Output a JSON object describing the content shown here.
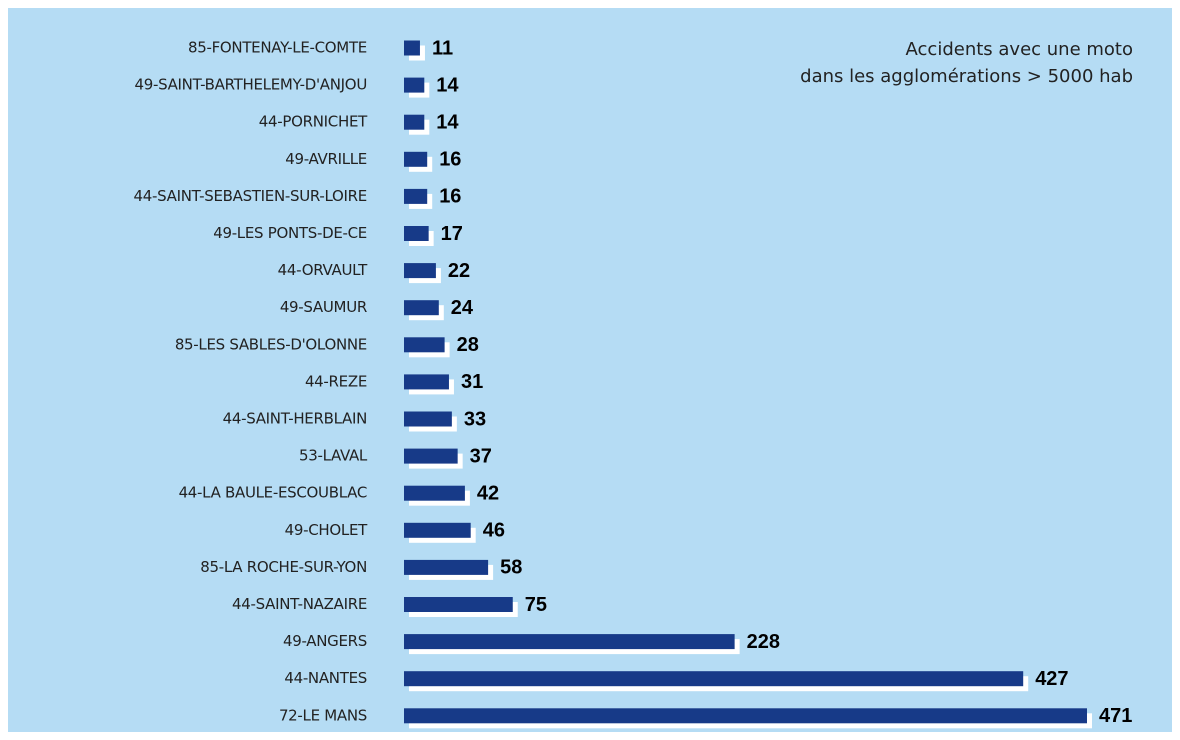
{
  "chart_data": {
    "type": "bar",
    "orientation": "horizontal",
    "title": [
      "Accidents avec une moto",
      "dans les agglomérations > 5000 hab"
    ],
    "categories": [
      "85-FONTENAY-LE-COMTE",
      "49-SAINT-BARTHELEMY-D'ANJOU",
      "44-PORNICHET",
      "49-AVRILLE",
      "44-SAINT-SEBASTIEN-SUR-LOIRE",
      "49-LES PONTS-DE-CE",
      "44-ORVAULT",
      "49-SAUMUR",
      "85-LES SABLES-D'OLONNE",
      "44-REZE",
      "44-SAINT-HERBLAIN",
      "53-LAVAL",
      "44-LA BAULE-ESCOUBLAC",
      "49-CHOLET",
      "85-LA ROCHE-SUR-YON",
      "44-SAINT-NAZAIRE",
      "49-ANGERS",
      "44-NANTES",
      "72-LE MANS"
    ],
    "values": [
      11,
      14,
      14,
      16,
      16,
      17,
      22,
      24,
      28,
      31,
      33,
      37,
      42,
      46,
      58,
      75,
      228,
      427,
      471
    ],
    "color": "#173a88",
    "background": "#b5dcf4"
  }
}
